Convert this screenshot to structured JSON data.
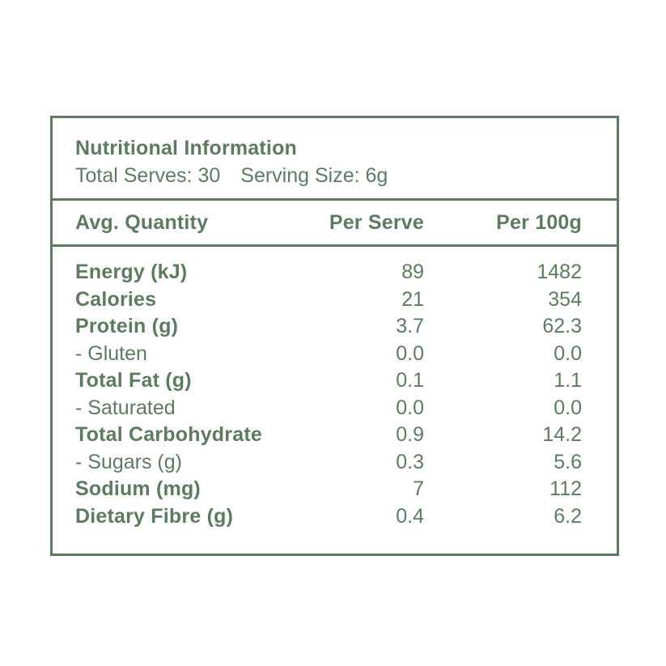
{
  "label": {
    "title": "Nutritional Information",
    "total_serves": "Total Serves: 30",
    "serving_size": "Serving Size: 6g"
  },
  "table": {
    "headers": {
      "name": "Avg. Quantity",
      "per_serve": "Per Serve",
      "per_100g": "Per 100g"
    },
    "rows": [
      {
        "name": "Energy (kJ)",
        "per_serve": "89",
        "per_100g": "1482",
        "emphasis": true
      },
      {
        "name": "Calories",
        "per_serve": "21",
        "per_100g": "354",
        "emphasis": true
      },
      {
        "name": "Protein (g)",
        "per_serve": "3.7",
        "per_100g": "62.3",
        "emphasis": true
      },
      {
        "name": "- Gluten",
        "per_serve": "0.0",
        "per_100g": "0.0",
        "emphasis": false
      },
      {
        "name": "Total Fat (g)",
        "per_serve": "0.1",
        "per_100g": "1.1",
        "emphasis": true
      },
      {
        "name": "- Saturated",
        "per_serve": "0.0",
        "per_100g": "0.0",
        "emphasis": false
      },
      {
        "name": "Total Carbohydrate",
        "per_serve": "0.9",
        "per_100g": "14.2",
        "emphasis": true
      },
      {
        "name": "- Sugars (g)",
        "per_serve": "0.3",
        "per_100g": "5.6",
        "emphasis": false
      },
      {
        "name": "Sodium (mg)",
        "per_serve": "7",
        "per_100g": "112",
        "emphasis": true
      },
      {
        "name": "Dietary Fibre (g)",
        "per_serve": "0.4",
        "per_100g": "6.2",
        "emphasis": true
      }
    ]
  },
  "colors": {
    "accent": "#5e7b61",
    "background": "#ffffff"
  }
}
